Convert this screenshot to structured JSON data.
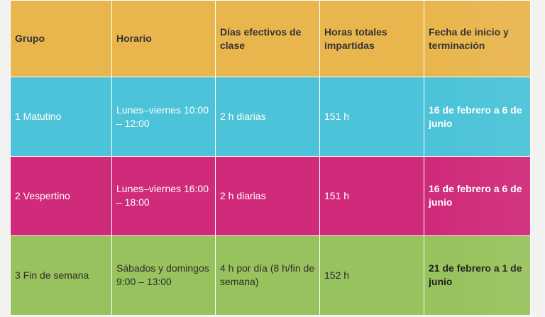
{
  "table": {
    "headers": [
      "Grupo",
      "Horario",
      "Días efectivos de clase",
      "Horas totales impartidas",
      "Fecha de inicio y terminación"
    ],
    "rows": [
      {
        "grupo": "1 Matutino",
        "horario": "Lunes–viernes 10:00 – 12:00",
        "dias": "2 h diarias",
        "horas": "151 h",
        "fecha": "16 de febrero a 6 de junio"
      },
      {
        "grupo": "2 Vespertino",
        "horario": "Lunes–viernes 16:00 – 18:00",
        "dias": "2 h diarias",
        "horas": "151 h",
        "fecha": "16 de febrero a 6 de junio"
      },
      {
        "grupo": "3 Fin de semana",
        "horario": "Sábados y domingos 9:00 – 13:00",
        "dias": "4 h por día (8 h/fin de semana)",
        "horas": "152 h",
        "fecha": "21 de febrero a 1 de junio"
      }
    ]
  },
  "colors": {
    "header": "#e9b64e",
    "matutino": "#4cc3d8",
    "vespertino": "#d02b7a",
    "fin_de_semana": "#98c25d"
  }
}
